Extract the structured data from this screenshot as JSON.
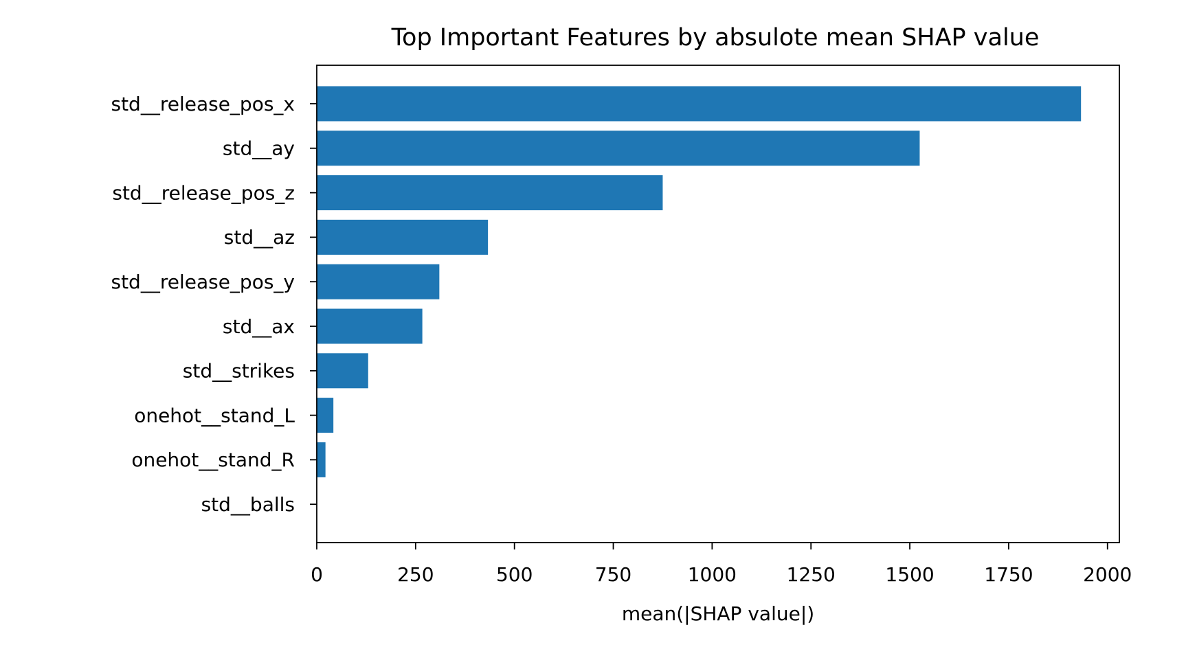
{
  "chart_data": {
    "type": "bar",
    "orientation": "horizontal",
    "title": "Top Important Features by absulote mean SHAP value",
    "xlabel": "mean(|SHAP value|)",
    "ylabel": "",
    "xlim": [
      0,
      2030
    ],
    "xticks": [
      0,
      250,
      500,
      750,
      1000,
      1250,
      1500,
      1750,
      2000
    ],
    "xtick_labels": [
      "0",
      "250",
      "500",
      "750",
      "1000",
      "1250",
      "1500",
      "1750",
      "2000"
    ],
    "grid": false,
    "legend": "none",
    "bar_color": "#1f77b4",
    "categories": [
      "std__release_pos_x",
      "std__ay",
      "std__release_pos_z",
      "std__az",
      "std__release_pos_y",
      "std__ax",
      "std__strikes",
      "onehot__stand_L",
      "onehot__stand_R",
      "std__balls"
    ],
    "values": [
      1933,
      1525,
      875,
      433,
      310,
      267,
      130,
      42,
      22,
      0
    ]
  }
}
